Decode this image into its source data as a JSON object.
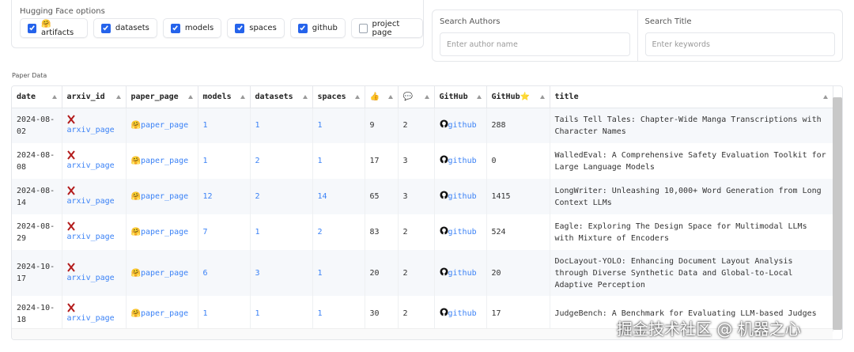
{
  "filters": {
    "label": "Hugging Face options",
    "options": [
      {
        "label": "🤗 artifacts",
        "checked": true
      },
      {
        "label": "datasets",
        "checked": true
      },
      {
        "label": "models",
        "checked": true
      },
      {
        "label": "spaces",
        "checked": true
      },
      {
        "label": "github",
        "checked": true
      },
      {
        "label": "project page",
        "checked": false
      }
    ]
  },
  "search_authors": {
    "label": "Search Authors",
    "placeholder": "Enter author name"
  },
  "search_title": {
    "label": "Search Title",
    "placeholder": "Enter keywords"
  },
  "table": {
    "label": "Paper Data",
    "headers": [
      "date",
      "arxiv_id",
      "paper_page",
      "models",
      "datasets",
      "spaces",
      "👍",
      "💬",
      "GitHub",
      "GitHub⭐",
      "title"
    ],
    "rows": [
      [
        "2024-08-02",
        "arxiv_page",
        "🤗paper_page",
        1,
        1,
        1,
        9,
        2,
        "github",
        288,
        "Tails Tell Tales: Chapter-Wide Manga Transcriptions with Character Names"
      ],
      [
        "2024-08-08",
        "arxiv_page",
        "🤗paper_page",
        1,
        2,
        1,
        17,
        3,
        "github",
        0,
        "WalledEval: A Comprehensive Safety Evaluation Toolkit for Large Language Models"
      ],
      [
        "2024-08-14",
        "arxiv_page",
        "🤗paper_page",
        12,
        2,
        14,
        65,
        3,
        "github",
        1415,
        "LongWriter: Unleashing 10,000+ Word Generation from Long Context LLMs"
      ],
      [
        "2024-08-29",
        "arxiv_page",
        "🤗paper_page",
        7,
        1,
        2,
        83,
        2,
        "github",
        524,
        "Eagle: Exploring The Design Space for Multimodal LLMs with Mixture of Encoders"
      ],
      [
        "2024-10-17",
        "arxiv_page",
        "🤗paper_page",
        6,
        3,
        1,
        20,
        2,
        "github",
        20,
        "DocLayout-YOLO: Enhancing Document Layout Analysis through Diverse Synthetic Data and Global-to-Local Adaptive Perception"
      ],
      [
        "2024-10-18",
        "arxiv_page",
        "🤗paper_page",
        1,
        1,
        1,
        30,
        2,
        "github",
        17,
        "JudgeBench: A Benchmark for Evaluating LLM-based Judges"
      ]
    ]
  },
  "watermark": "掘金技术社区 @ 机器之心"
}
